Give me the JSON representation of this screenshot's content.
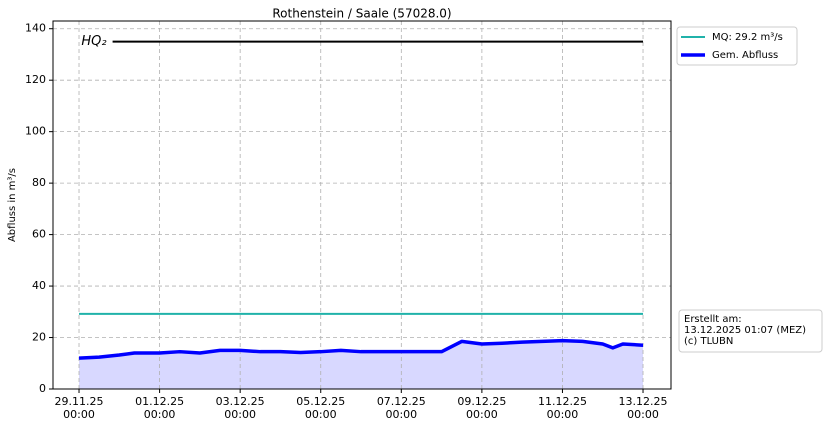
{
  "chart_data": {
    "type": "line",
    "title": "Rothenstein / Saale (57028.0)",
    "ylabel": "Abfluss in m³/s",
    "xlim": [
      "28.11.25 08:30",
      "13.12.25 16:40"
    ],
    "ylim": [
      0,
      143
    ],
    "yticks": [
      0,
      20,
      40,
      60,
      80,
      100,
      120,
      140
    ],
    "xticks": [
      "29.11.25 00:00",
      "01.12.25 00:00",
      "03.12.25 00:00",
      "05.12.25 00:00",
      "07.12.25 00:00",
      "09.12.25 00:00",
      "11.12.25 00:00",
      "13.12.25 00:00"
    ],
    "grid": true,
    "legend": "outside-upper-right",
    "series": [
      {
        "name": "MQ: 29.2 m³/s",
        "color": "#20b2aa",
        "width": 2,
        "x": [
          "29.11.25 00:00",
          "13.12.25 00:00"
        ],
        "values": [
          29.2,
          29.2
        ]
      },
      {
        "name": "Gem. Abfluss",
        "color": "#0000ff",
        "width": 3.5,
        "fill_color": "#d8d8ff",
        "x": [
          "29.11.25 00:00",
          "29.11.25 12:00",
          "30.11.25 00:00",
          "30.11.25 09:00",
          "30.11.25 12:00",
          "01.12.25 00:00",
          "01.12.25 12:00",
          "02.12.25 00:00",
          "02.12.25 12:00",
          "03.12.25 00:00",
          "03.12.25 12:00",
          "04.12.25 00:00",
          "04.12.25 12:00",
          "05.12.25 00:00",
          "05.12.25 12:00",
          "06.12.25 00:00",
          "06.12.25 12:00",
          "07.12.25 00:00",
          "07.12.25 12:00",
          "08.12.25 00:00",
          "08.12.25 12:00",
          "09.12.25 00:00",
          "09.12.25 12:00",
          "10.12.25 00:00",
          "10.12.25 12:00",
          "11.12.25 00:00",
          "11.12.25 12:00",
          "12.12.25 00:00",
          "12.12.25 06:00",
          "12.12.25 12:00",
          "13.12.25 00:00"
        ],
        "values": [
          12.0,
          12.4,
          13.2,
          14.0,
          14.0,
          14.0,
          14.5,
          14.0,
          15.0,
          15.0,
          14.5,
          14.5,
          14.2,
          14.5,
          15.0,
          14.5,
          14.5,
          14.5,
          14.5,
          14.5,
          18.5,
          17.5,
          17.8,
          18.2,
          18.5,
          18.8,
          18.5,
          17.5,
          16.0,
          17.5,
          17.0
        ]
      }
    ],
    "hlines": [
      {
        "label": "HQ₂",
        "value": 135,
        "color": "#000000",
        "x": [
          "29.11.25 20:00",
          "13.12.25 00:00"
        ]
      }
    ],
    "annotation": [
      "Erstellt am:",
      "13.12.2025 01:07 (MEZ)",
      "(c) TLUBN"
    ]
  }
}
